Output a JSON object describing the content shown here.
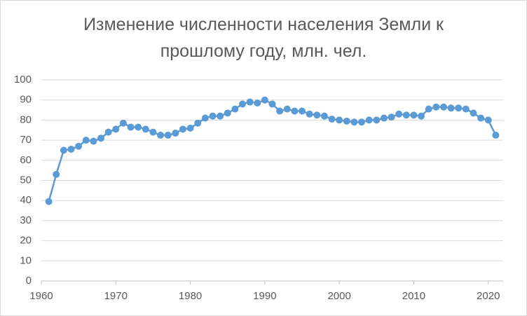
{
  "chart_data": {
    "type": "line",
    "title": "Изменение численности населения Земли к прошлому году, млн. чел.",
    "x": [
      1961,
      1962,
      1963,
      1964,
      1965,
      1966,
      1967,
      1968,
      1969,
      1970,
      1971,
      1972,
      1973,
      1974,
      1975,
      1976,
      1977,
      1978,
      1979,
      1980,
      1981,
      1982,
      1983,
      1984,
      1985,
      1986,
      1987,
      1988,
      1989,
      1990,
      1991,
      1992,
      1993,
      1994,
      1995,
      1996,
      1997,
      1998,
      1999,
      2000,
      2001,
      2002,
      2003,
      2004,
      2005,
      2006,
      2007,
      2008,
      2009,
      2010,
      2011,
      2012,
      2013,
      2014,
      2015,
      2016,
      2017,
      2018,
      2019,
      2020,
      2021
    ],
    "series": [
      {
        "color": "#5b9bd5",
        "values": [
          39.5,
          53,
          65,
          65.5,
          67,
          70,
          69.5,
          71,
          74,
          75.5,
          78.5,
          76.5,
          76.5,
          75.5,
          74,
          72.5,
          72.5,
          73.5,
          75.5,
          76,
          78.5,
          81,
          82,
          82,
          83.5,
          85.5,
          88,
          89,
          88.5,
          90,
          88,
          84.5,
          85.5,
          84.5,
          84.5,
          83,
          82.5,
          82,
          80.5,
          80,
          79.5,
          79,
          79,
          80,
          80,
          81,
          81.5,
          83,
          82.5,
          82.5,
          82,
          85.5,
          86.5,
          86.5,
          86,
          86,
          85.5,
          83.5,
          81,
          80,
          72.5
        ]
      }
    ],
    "xlim": [
      1960,
      2022
    ],
    "xticks": [
      1960,
      1970,
      1980,
      1990,
      2000,
      2010,
      2020
    ],
    "ylim": [
      0,
      100
    ],
    "yticks": [
      0,
      10,
      20,
      30,
      40,
      50,
      60,
      70,
      80,
      90,
      100
    ],
    "grid": true
  }
}
